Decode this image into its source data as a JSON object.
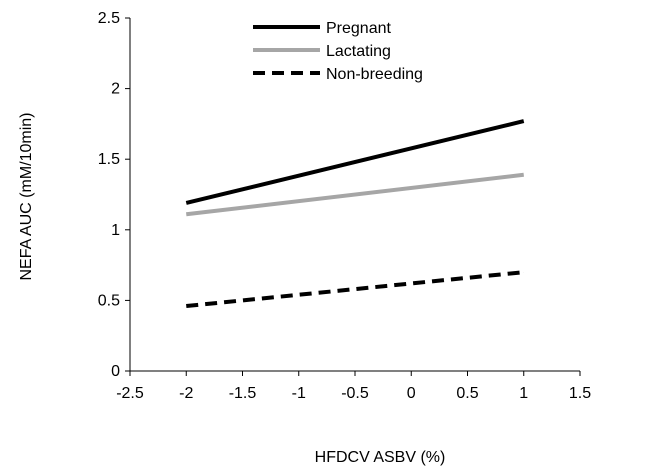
{
  "chart_data": {
    "type": "line",
    "title": "",
    "xlabel": "HFDCV ASBV (%)",
    "ylabel": "NEFA AUC (mM/10min)",
    "xlim": [
      -2.5,
      1.5
    ],
    "ylim": [
      0,
      2.5
    ],
    "x_ticks": [
      "-2.5",
      "-2",
      "-1.5",
      "-1",
      "-0.5",
      "0",
      "0.5",
      "1",
      "1.5"
    ],
    "y_ticks": [
      "0",
      "0.5",
      "1",
      "1.5",
      "2",
      "2.5"
    ],
    "grid": false,
    "legend_position": "top-center",
    "series": [
      {
        "name": "Pregnant",
        "x": [
          -2,
          1
        ],
        "y": [
          1.19,
          1.77
        ],
        "color": "#000000",
        "style": "solid"
      },
      {
        "name": "Lactating",
        "x": [
          -2,
          1
        ],
        "y": [
          1.11,
          1.39
        ],
        "color": "#a6a6a6",
        "style": "solid"
      },
      {
        "name": "Non-breeding",
        "x": [
          -2,
          1
        ],
        "y": [
          0.46,
          0.7
        ],
        "color": "#000000",
        "style": "dashed"
      }
    ]
  }
}
